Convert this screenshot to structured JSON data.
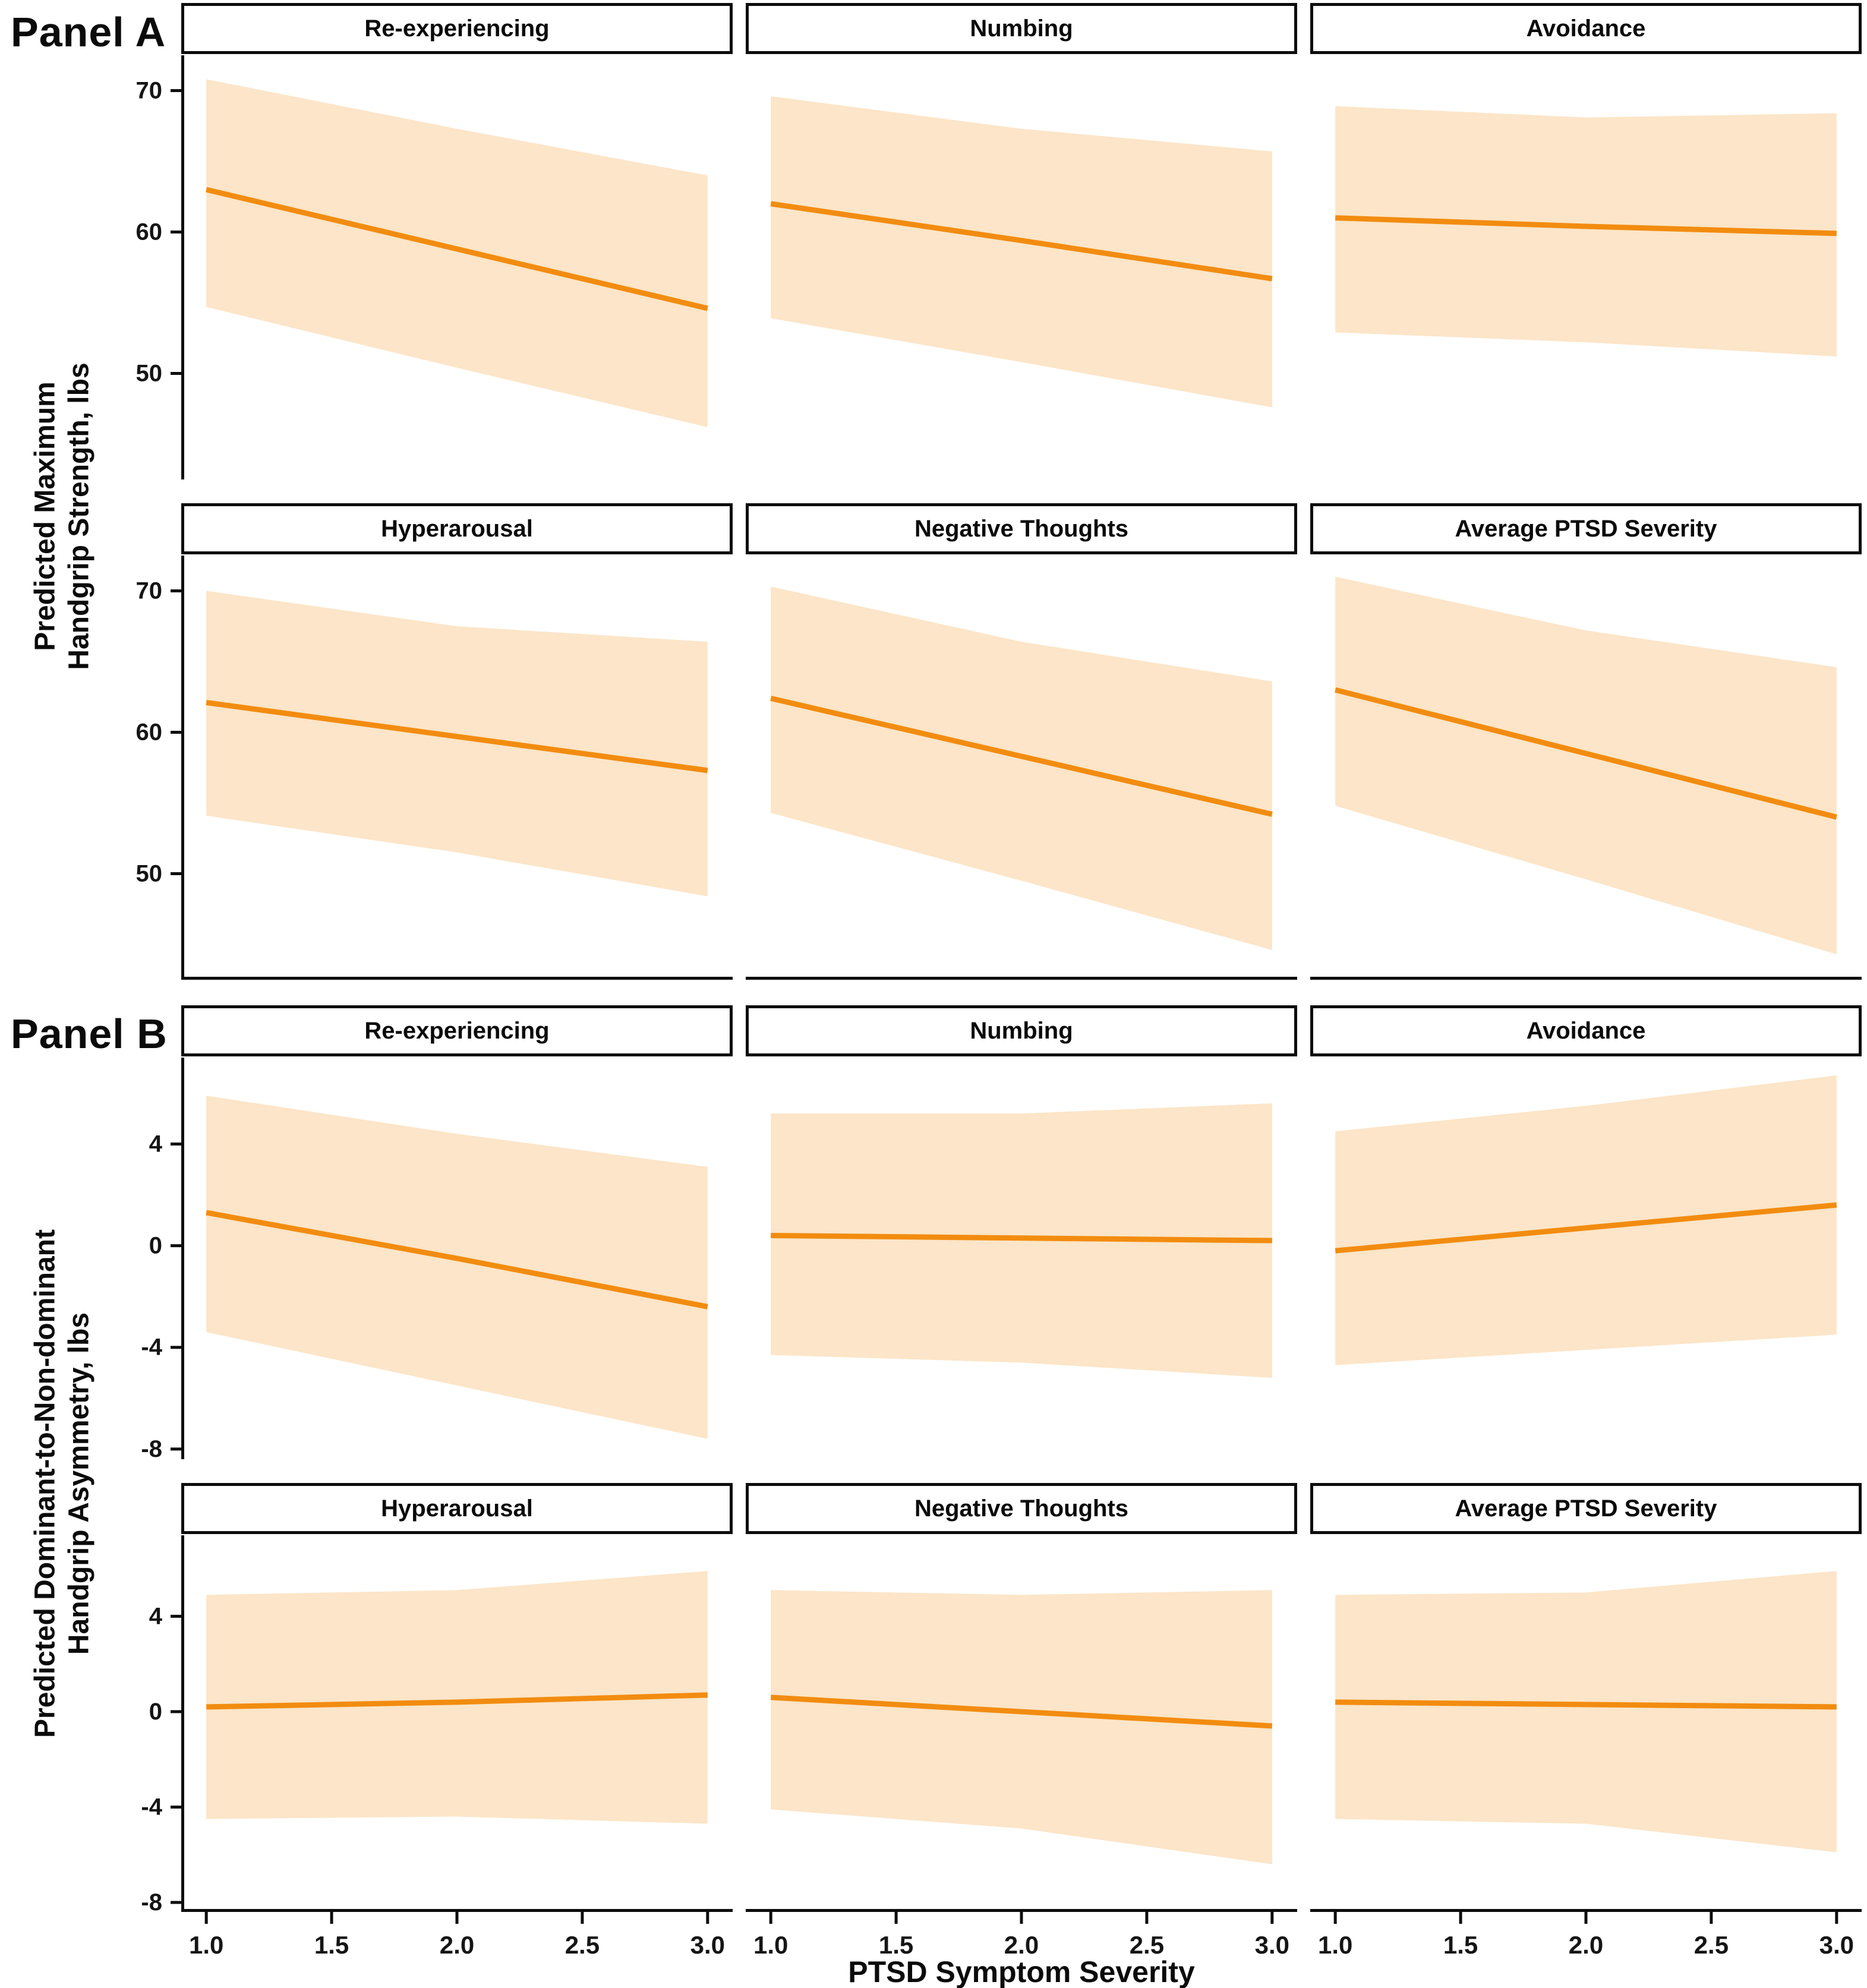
{
  "chart_data": {
    "type": "line",
    "description": "Faceted regression lines with confidence ribbons",
    "x": [
      1.0,
      2.0,
      3.0
    ],
    "x_axis": {
      "title": "PTSD Symptom Severity",
      "xlim": [
        0.9,
        3.1
      ],
      "ticks": [
        {
          "v": 1.0,
          "label": "1.0"
        },
        {
          "v": 1.5,
          "label": "1.5"
        },
        {
          "v": 2.0,
          "label": "2.0"
        },
        {
          "v": 2.5,
          "label": "2.5"
        },
        {
          "v": 3.0,
          "label": "3.0"
        }
      ]
    },
    "panels": [
      {
        "label": "Panel A",
        "y_axis_title": "Predicted Maximum\nHandgrip Strength, lbs",
        "ylim": [
          42.5,
          72.5
        ],
        "y_ticks": [
          {
            "v": 70,
            "label": "70"
          },
          {
            "v": 60,
            "label": "60"
          },
          {
            "v": 50,
            "label": "50"
          }
        ],
        "facets": [
          {
            "title": "Re-experiencing",
            "line": [
              63.0,
              58.8,
              54.6
            ],
            "upper": [
              70.8,
              67.3,
              64.0
            ],
            "lower": [
              54.7,
              50.4,
              46.2
            ]
          },
          {
            "title": "Numbing",
            "line": [
              62.0,
              59.4,
              56.7
            ],
            "upper": [
              69.6,
              67.3,
              65.7
            ],
            "lower": [
              53.9,
              50.8,
              47.6
            ]
          },
          {
            "title": "Avoidance",
            "line": [
              61.0,
              60.4,
              59.9
            ],
            "upper": [
              68.9,
              68.1,
              68.4
            ],
            "lower": [
              52.9,
              52.2,
              51.2
            ]
          },
          {
            "title": "Hyperarousal",
            "line": [
              62.1,
              59.7,
              57.3
            ],
            "upper": [
              70.0,
              67.5,
              66.4
            ],
            "lower": [
              54.1,
              51.5,
              48.4
            ]
          },
          {
            "title": "Negative Thoughts",
            "line": [
              62.4,
              58.3,
              54.2
            ],
            "upper": [
              70.3,
              66.4,
              63.6
            ],
            "lower": [
              54.3,
              49.5,
              44.6
            ]
          },
          {
            "title": "Average PTSD Severity",
            "line": [
              63.0,
              58.5,
              54.0
            ],
            "upper": [
              71.0,
              67.2,
              64.6
            ],
            "lower": [
              54.8,
              49.6,
              44.3
            ]
          }
        ]
      },
      {
        "label": "Panel B",
        "y_axis_title": "Predicted Dominant-to-Non-dominant\nHandgrip Asymmetry, lbs",
        "ylim": [
          -8.4,
          7.4
        ],
        "y_ticks": [
          {
            "v": 4,
            "label": "4"
          },
          {
            "v": 0,
            "label": "0"
          },
          {
            "v": -4,
            "label": "-4"
          },
          {
            "v": -8,
            "label": "-8"
          }
        ],
        "facets": [
          {
            "title": "Re-experiencing",
            "line": [
              1.3,
              -0.5,
              -2.4
            ],
            "upper": [
              5.9,
              4.4,
              3.1
            ],
            "lower": [
              -3.4,
              -5.5,
              -7.6
            ]
          },
          {
            "title": "Numbing",
            "line": [
              0.4,
              0.3,
              0.2
            ],
            "upper": [
              5.2,
              5.2,
              5.6
            ],
            "lower": [
              -4.3,
              -4.6,
              -5.2
            ]
          },
          {
            "title": "Avoidance",
            "line": [
              -0.2,
              0.7,
              1.6
            ],
            "upper": [
              4.5,
              5.5,
              6.7
            ],
            "lower": [
              -4.7,
              -4.1,
              -3.5
            ]
          },
          {
            "title": "Hyperarousal",
            "line": [
              0.2,
              0.4,
              0.7
            ],
            "upper": [
              4.9,
              5.1,
              5.9
            ],
            "lower": [
              -4.5,
              -4.4,
              -4.7
            ]
          },
          {
            "title": "Negative Thoughts",
            "line": [
              0.6,
              0.0,
              -0.6
            ],
            "upper": [
              5.1,
              4.9,
              5.1
            ],
            "lower": [
              -4.1,
              -4.9,
              -6.4
            ]
          },
          {
            "title": "Average PTSD Severity",
            "line": [
              0.4,
              0.3,
              0.2
            ],
            "upper": [
              4.9,
              5.0,
              5.9
            ],
            "lower": [
              -4.5,
              -4.7,
              -5.9
            ]
          }
        ]
      }
    ],
    "colors": {
      "line": "#F28C10",
      "ribbon": "#FCE5C8",
      "axis": "#0d0d0d",
      "text": "#0b0b0b",
      "strip_background": "#ffffff"
    }
  }
}
